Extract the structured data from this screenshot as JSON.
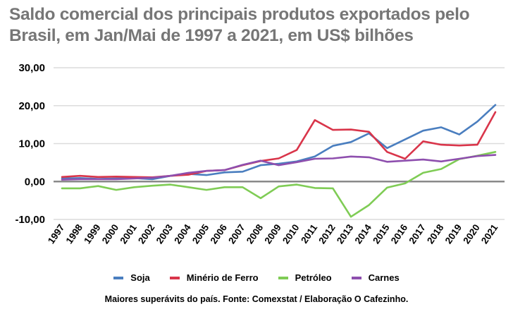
{
  "title": "Saldo comercial dos principais produtos exportados pelo Brasil, em Jan/Mai de 1997 a 2021, em US$ bilhões",
  "footer": "Maiores superávits do país. Fonte: Comexstat / Elaboração O Cafezinho.",
  "chart_data": {
    "type": "line",
    "title": "Saldo comercial dos principais produtos exportados pelo Brasil, em Jan/Mai de 1997 a 2021, em US$ bilhões",
    "xlabel": "",
    "ylabel": "",
    "ylim": [
      -10,
      30
    ],
    "yticks": [
      "30,00",
      "20,00",
      "10,00",
      "0,00",
      "-10,00"
    ],
    "ytick_values": [
      30,
      20,
      10,
      0,
      -10
    ],
    "grid": true,
    "legend_position": "bottom",
    "x": [
      "1997",
      "1998",
      "1999",
      "2000",
      "2001",
      "2002",
      "2003",
      "2004",
      "2005",
      "2006",
      "2007",
      "2008",
      "2009",
      "2010",
      "2011",
      "2012",
      "2013",
      "2014",
      "2015",
      "2016",
      "2017",
      "2018",
      "2019",
      "2020",
      "2021"
    ],
    "series": [
      {
        "name": "Soja",
        "color": "#4a7ebf",
        "values": [
          0.8,
          0.9,
          0.7,
          0.8,
          0.9,
          0.6,
          1.5,
          2.0,
          1.7,
          2.4,
          2.6,
          4.3,
          4.7,
          5.3,
          6.6,
          9.4,
          10.4,
          12.7,
          8.8,
          11.1,
          13.4,
          14.3,
          12.4,
          15.8,
          20.2
        ]
      },
      {
        "name": "Minério de Ferro",
        "color": "#d9354a",
        "values": [
          1.2,
          1.5,
          1.2,
          1.3,
          1.2,
          1.1,
          1.5,
          1.8,
          2.8,
          3.0,
          4.3,
          5.4,
          6.1,
          8.3,
          16.2,
          13.6,
          13.7,
          13.1,
          7.8,
          6.0,
          10.6,
          9.7,
          9.5,
          9.7,
          18.3
        ]
      },
      {
        "name": "Petróleo",
        "color": "#7fcc55",
        "values": [
          -1.8,
          -1.8,
          -1.2,
          -2.2,
          -1.5,
          -1.1,
          -0.8,
          -1.5,
          -2.2,
          -1.5,
          -1.5,
          -4.4,
          -1.3,
          -0.8,
          -1.7,
          -1.8,
          -9.3,
          -6.2,
          -1.6,
          -0.5,
          2.3,
          3.3,
          5.9,
          6.8,
          7.8
        ]
      },
      {
        "name": "Carnes",
        "color": "#8e4fae",
        "values": [
          0.5,
          0.6,
          0.6,
          0.6,
          0.8,
          1.0,
          1.5,
          2.3,
          2.8,
          3.0,
          4.4,
          5.5,
          4.3,
          5.1,
          6.0,
          6.1,
          6.6,
          6.4,
          5.2,
          5.5,
          5.8,
          5.3,
          6.0,
          6.7,
          7.0
        ]
      }
    ]
  }
}
